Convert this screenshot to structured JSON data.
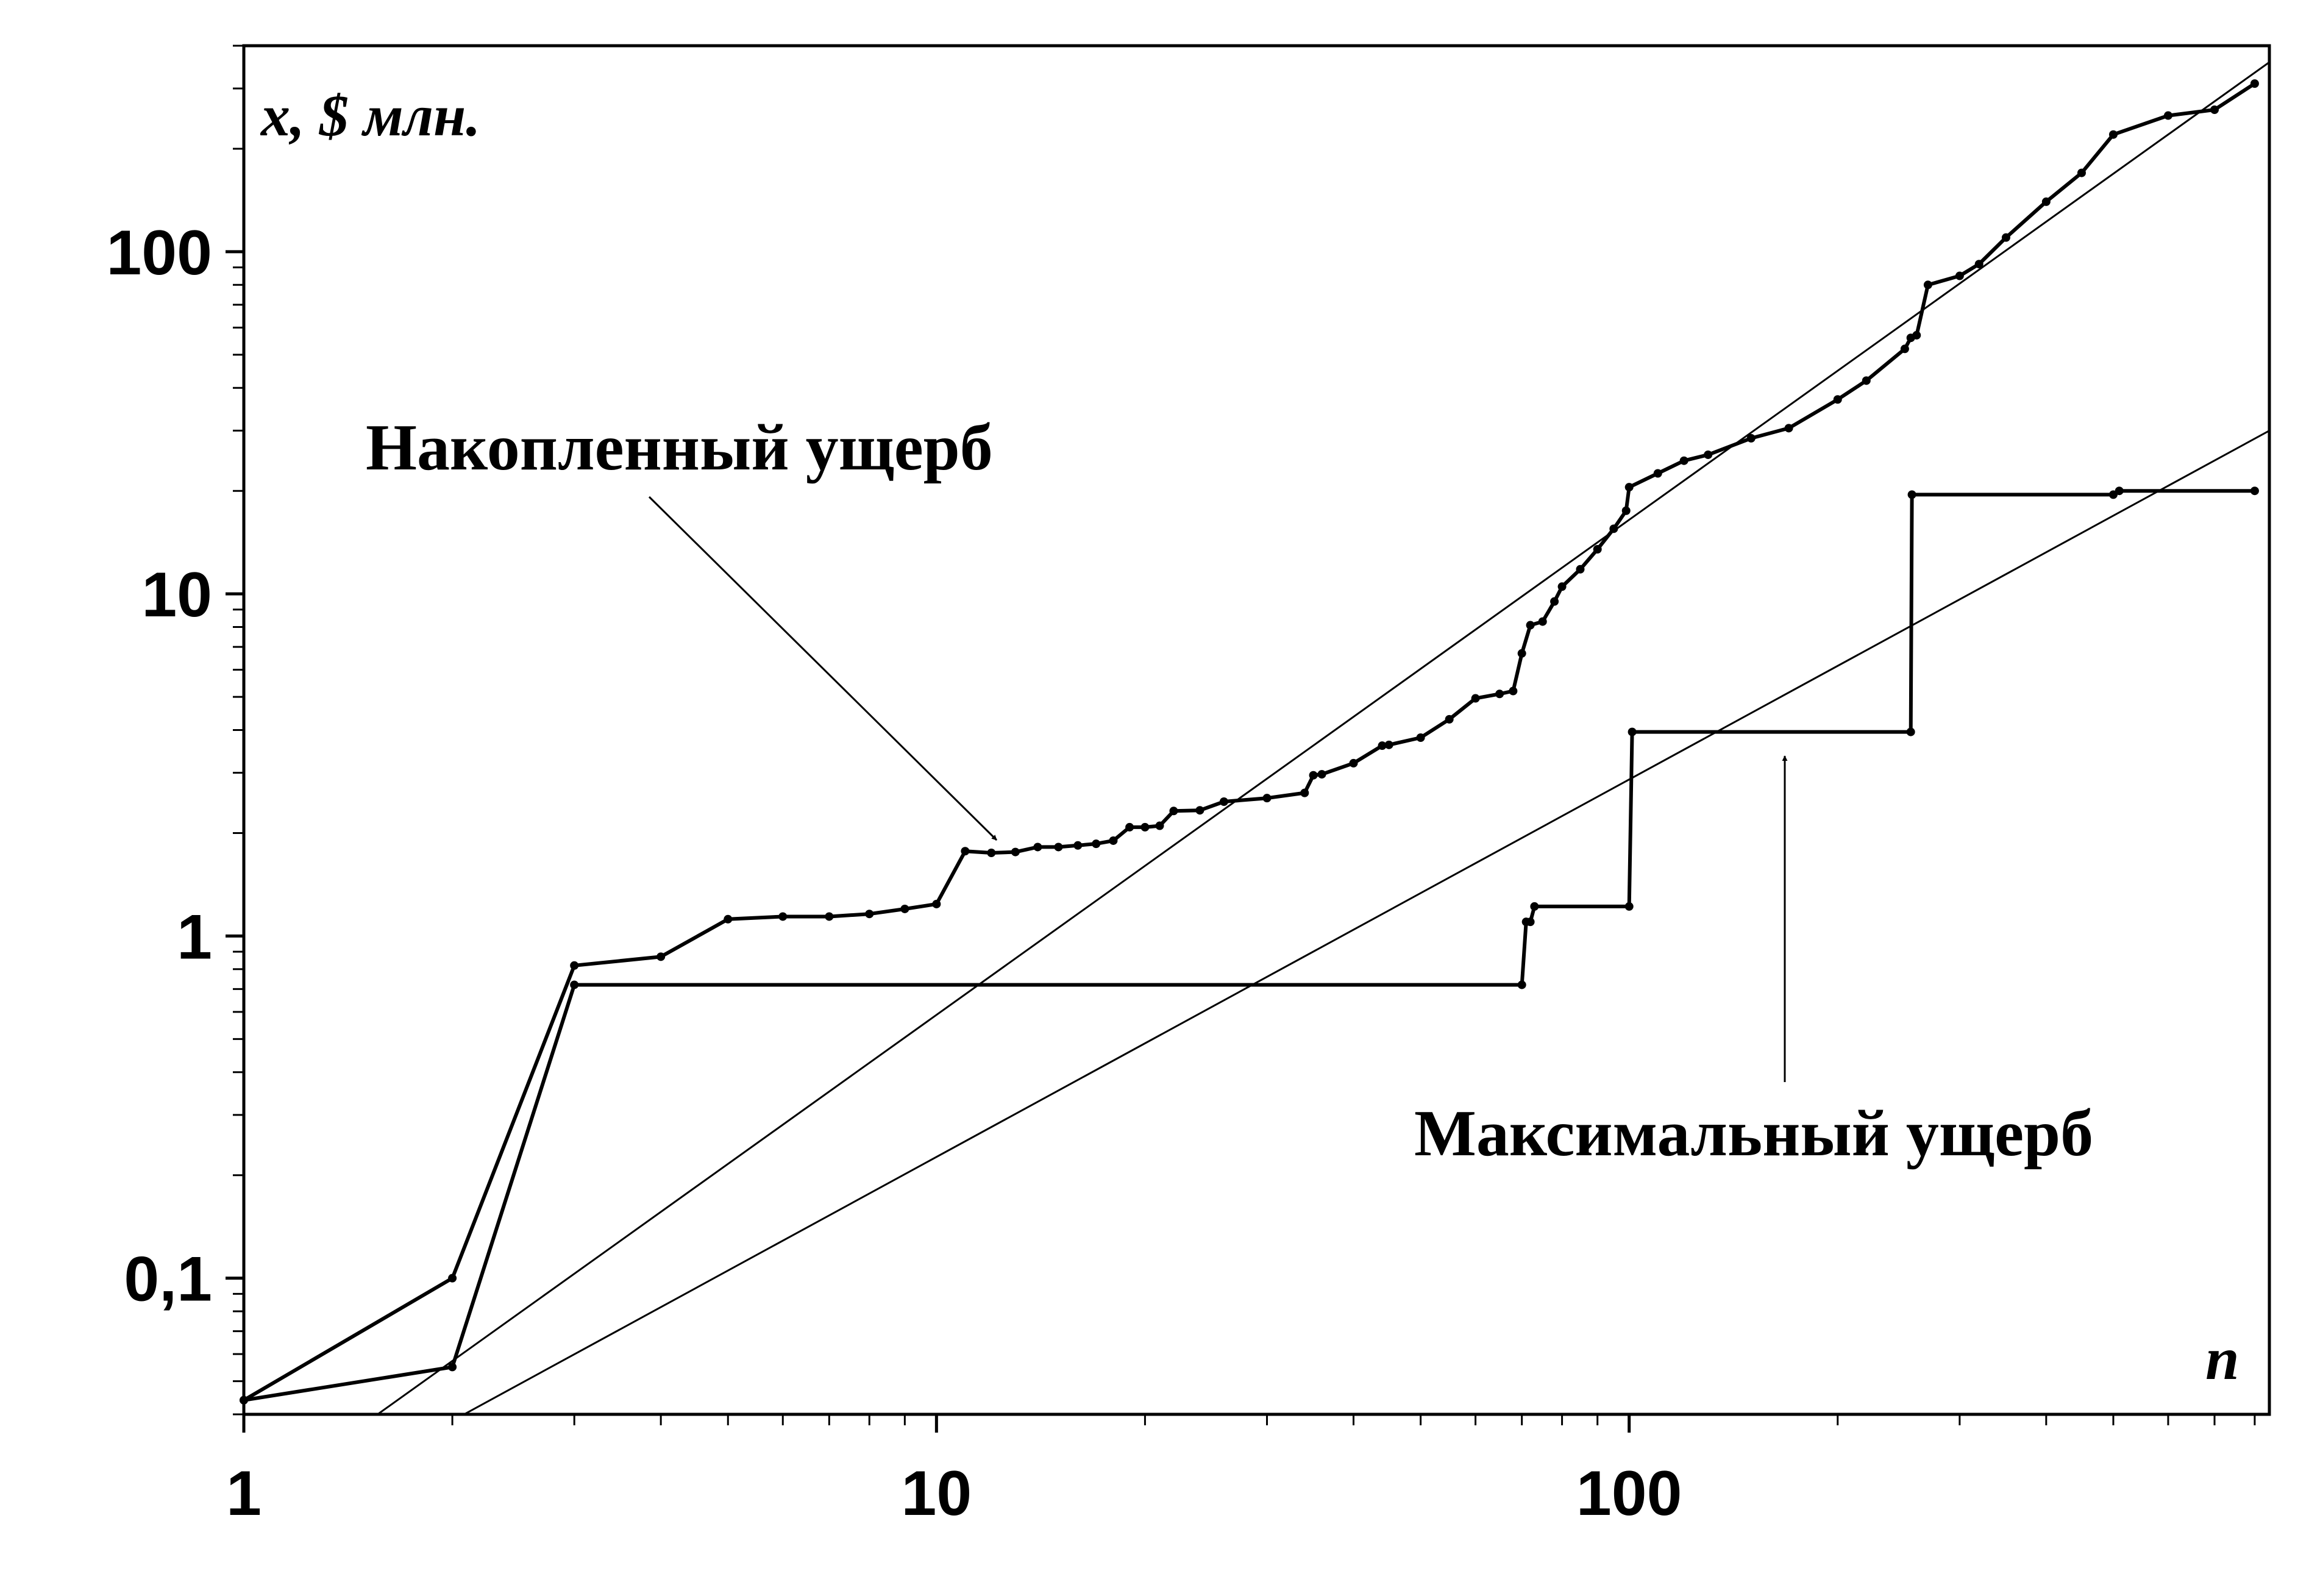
{
  "chart_data": {
    "type": "line",
    "title": "",
    "xlabel": "n",
    "ylabel": "x, $ млн.",
    "x_scale": "log",
    "y_scale": "log",
    "xlim": [
      1,
      840
    ],
    "ylim": [
      0.04,
      400
    ],
    "x_ticks": [
      1,
      10,
      100
    ],
    "x_tick_labels": [
      "1",
      "10",
      "100"
    ],
    "y_ticks": [
      0.1,
      1,
      10,
      100
    ],
    "y_tick_labels": [
      "0,1",
      "1",
      "10",
      "100"
    ],
    "grid": false,
    "series": [
      {
        "name": "Накопленный ущерб",
        "style": "line-with-dots",
        "color": "#000000",
        "x": [
          1,
          2,
          3,
          4,
          5,
          6,
          7,
          8,
          9,
          10,
          11,
          12,
          13,
          14,
          15,
          16,
          17,
          18,
          19,
          20,
          21,
          22,
          24,
          26,
          30,
          34,
          35,
          36,
          40,
          44,
          45,
          50,
          55,
          60,
          65,
          68,
          70,
          72,
          75,
          78,
          80,
          85,
          90,
          95,
          99,
          100,
          110,
          120,
          130,
          150,
          170,
          200,
          220,
          250,
          255,
          260,
          270,
          300,
          320,
          350,
          400,
          450,
          500,
          600,
          700,
          800
        ],
        "y": [
          0.044,
          0.1,
          0.82,
          0.87,
          1.12,
          1.14,
          1.14,
          1.16,
          1.2,
          1.24,
          1.77,
          1.75,
          1.76,
          1.82,
          1.82,
          1.84,
          1.86,
          1.9,
          2.08,
          2.08,
          2.1,
          2.32,
          2.33,
          2.47,
          2.53,
          2.62,
          2.95,
          2.97,
          3.2,
          3.6,
          3.62,
          3.8,
          4.3,
          4.95,
          5.1,
          5.2,
          6.7,
          8.1,
          8.3,
          9.5,
          10.5,
          11.8,
          13.5,
          15.5,
          17.5,
          20.5,
          22.5,
          24.5,
          25.5,
          28.5,
          30.5,
          37,
          42,
          52,
          56,
          57,
          80,
          85,
          92,
          110,
          140,
          170,
          220,
          250,
          260,
          310
        ]
      },
      {
        "name": "Максимальный ущерб",
        "style": "line-with-dots",
        "color": "#000000",
        "x": [
          1,
          2,
          3,
          70,
          71,
          72,
          73,
          100,
          101,
          255,
          256,
          500,
          510,
          800
        ],
        "y": [
          0.044,
          0.055,
          0.72,
          0.72,
          1.1,
          1.1,
          1.22,
          1.22,
          3.95,
          3.95,
          19.5,
          19.5,
          20,
          20
        ]
      },
      {
        "name": "",
        "style": "thin-line",
        "color": "#000000",
        "x": [
          1.56,
          840
        ],
        "y": [
          0.04,
          358
        ]
      },
      {
        "name": "",
        "style": "thin-line",
        "color": "#000000",
        "x": [
          2.08,
          840
        ],
        "y": [
          0.04,
          30
        ]
      }
    ],
    "annotations": [
      {
        "text": "Накопленный ущерб",
        "arrow_to": [
          12,
          1.72
        ]
      },
      {
        "text": "Максимальный ущерб",
        "arrow_to": [
          170,
          3.7
        ]
      }
    ]
  }
}
